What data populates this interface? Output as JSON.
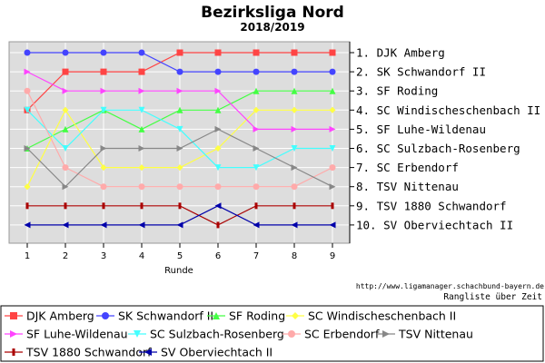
{
  "chart_data": {
    "type": "line",
    "title": "Bezirksliga Nord",
    "subtitle": "2018/2019",
    "xlabel": "Runde",
    "ylabel": "",
    "x": [
      1,
      2,
      3,
      4,
      5,
      6,
      7,
      8,
      9
    ],
    "ylim": [
      1,
      10
    ],
    "y_reversed": true,
    "grid": true,
    "legend_position": "bottom",
    "rank_labels": [
      "1. DJK Amberg",
      "2. SK Schwandorf II",
      "3. SF Roding",
      "4. SC Windischeschenbach II",
      "5. SF Luhe-Wildenau",
      "6. SC Sulzbach-Rosenberg",
      "7. SC Erbendorf",
      "8. TSV Nittenau",
      "9. TSV 1880 Schwandorf",
      "10. SV Oberviechtach II"
    ],
    "source_text": "http://www.ligamanager.schachbund-bayern.de",
    "caption": "Rangliste über Zeit",
    "series": [
      {
        "name": "DJK Amberg",
        "color": "#ff4444",
        "marker": "square",
        "values": [
          4,
          2,
          2,
          2,
          1,
          1,
          1,
          1,
          1
        ]
      },
      {
        "name": "SK Schwandorf II",
        "color": "#4444ff",
        "marker": "circle",
        "values": [
          1,
          1,
          1,
          1,
          2,
          2,
          2,
          2,
          2
        ]
      },
      {
        "name": "SF Roding",
        "color": "#44ff44",
        "marker": "triangle-up",
        "values": [
          6,
          5,
          4,
          5,
          4,
          4,
          3,
          3,
          3
        ]
      },
      {
        "name": "SC Windischeschenbach II",
        "color": "#ffff44",
        "marker": "diamond",
        "values": [
          8,
          4,
          7,
          7,
          7,
          6,
          4,
          4,
          4
        ]
      },
      {
        "name": "SF Luhe-Wildenau",
        "color": "#ff44ff",
        "marker": "triangle-right",
        "values": [
          2,
          3,
          3,
          3,
          3,
          3,
          5,
          5,
          5
        ]
      },
      {
        "name": "SC Sulzbach-Rosenberg",
        "color": "#44ffff",
        "marker": "triangle-down",
        "values": [
          4,
          6,
          4,
          4,
          5,
          7,
          7,
          6,
          6
        ]
      },
      {
        "name": "SC Erbendorf",
        "color": "#ffaaaa",
        "marker": "circle",
        "values": [
          3,
          7,
          8,
          8,
          8,
          8,
          8,
          8,
          7
        ]
      },
      {
        "name": "TSV Nittenau",
        "color": "#888888",
        "marker": "triangle-right",
        "values": [
          6,
          8,
          6,
          6,
          6,
          5,
          6,
          7,
          8
        ]
      },
      {
        "name": "TSV 1880 Schwandorf",
        "color": "#aa0000",
        "marker": "bar",
        "values": [
          9,
          9,
          9,
          9,
          9,
          10,
          9,
          9,
          9
        ]
      },
      {
        "name": "SV Oberviechtach II",
        "color": "#0000aa",
        "marker": "triangle-left",
        "values": [
          10,
          10,
          10,
          10,
          10,
          9,
          10,
          10,
          10
        ]
      }
    ]
  }
}
